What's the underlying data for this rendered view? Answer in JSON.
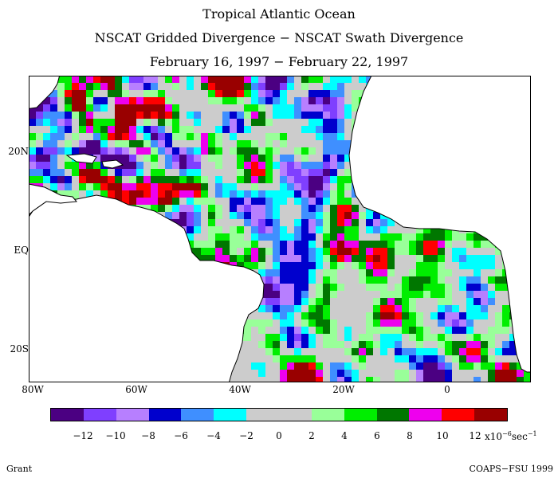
{
  "title": "Tropical Atlantic Ocean",
  "subtitle": "NSCAT Gridded Divergence − NSCAT Swath Divergence",
  "date_range": "February 16, 1997 − February 22, 1997",
  "lat_labels": [
    {
      "text": "20N",
      "value": 20
    },
    {
      "text": "EQ",
      "value": 0
    },
    {
      "text": "20S",
      "value": -20
    }
  ],
  "lon_labels": [
    {
      "text": "80W",
      "value": -80
    },
    {
      "text": "60W",
      "value": -60
    },
    {
      "text": "40W",
      "value": -40
    },
    {
      "text": "20W",
      "value": -20
    },
    {
      "text": "0",
      "value": 0
    }
  ],
  "colorbar": {
    "colors": [
      "#4b0082",
      "#7f3fff",
      "#b77fff",
      "#0000cd",
      "#3f8fff",
      "#00ffff",
      "#cccccc",
      "#cccccc",
      "#99ff99",
      "#00ee00",
      "#007700",
      "#ee00ee",
      "#ff0000",
      "#990000"
    ],
    "tick_labels": [
      "−12",
      "−10",
      "−8",
      "−6",
      "−4",
      "−2",
      "0",
      "2",
      "4",
      "6",
      "8",
      "10",
      "12"
    ],
    "units_prefix": "x10",
    "units_exponent": "−6",
    "units_suffix": "sec",
    "units_suffix_exponent": "−1"
  },
  "footer_left": "Grant",
  "footer_right": "COAPS−FSU 1999",
  "colors": {
    "land": "#ffffff",
    "coast": "#000000",
    "ocean_fill": "#cccccc"
  }
}
